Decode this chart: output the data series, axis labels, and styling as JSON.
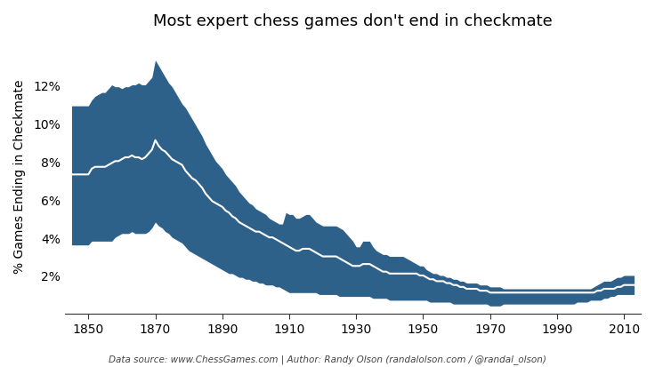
{
  "title": "Most expert chess games don't end in checkmate",
  "ylabel": "% Games Ending in Checkmate",
  "footnote": "Data source: www.ChessGames.com | Author: Randy Olson (randalolson.com / @randal_olson)",
  "fill_color": "#2e618a",
  "line_color": "#ffffff",
  "background_color": "#ffffff",
  "xlim": [
    1843,
    2015
  ],
  "ylim": [
    0,
    0.145
  ],
  "yticks": [
    0.02,
    0.04,
    0.06,
    0.08,
    0.1,
    0.12
  ],
  "ytick_labels": [
    "2%",
    "4%",
    "6%",
    "8%",
    "10%",
    "12%"
  ],
  "xticks": [
    1850,
    1870,
    1890,
    1910,
    1930,
    1950,
    1970,
    1990,
    2010
  ],
  "years": [
    1845,
    1848,
    1850,
    1851,
    1852,
    1853,
    1854,
    1855,
    1856,
    1857,
    1858,
    1859,
    1860,
    1861,
    1862,
    1863,
    1864,
    1865,
    1866,
    1867,
    1868,
    1869,
    1870,
    1871,
    1872,
    1873,
    1874,
    1875,
    1876,
    1877,
    1878,
    1879,
    1880,
    1881,
    1882,
    1883,
    1884,
    1885,
    1886,
    1887,
    1888,
    1889,
    1890,
    1891,
    1892,
    1893,
    1894,
    1895,
    1896,
    1897,
    1898,
    1899,
    1900,
    1901,
    1902,
    1903,
    1904,
    1905,
    1906,
    1907,
    1908,
    1909,
    1910,
    1911,
    1912,
    1913,
    1914,
    1915,
    1916,
    1917,
    1918,
    1919,
    1920,
    1921,
    1922,
    1923,
    1924,
    1925,
    1926,
    1927,
    1928,
    1929,
    1930,
    1931,
    1932,
    1933,
    1934,
    1935,
    1936,
    1937,
    1938,
    1939,
    1940,
    1941,
    1942,
    1943,
    1944,
    1945,
    1946,
    1947,
    1948,
    1949,
    1950,
    1951,
    1952,
    1953,
    1954,
    1955,
    1956,
    1957,
    1958,
    1959,
    1960,
    1961,
    1962,
    1963,
    1964,
    1965,
    1966,
    1967,
    1968,
    1969,
    1970,
    1971,
    1972,
    1973,
    1974,
    1975,
    1976,
    1977,
    1978,
    1979,
    1980,
    1981,
    1982,
    1983,
    1984,
    1985,
    1986,
    1987,
    1988,
    1989,
    1990,
    1991,
    1992,
    1993,
    1994,
    1995,
    1996,
    1997,
    1998,
    1999,
    2000,
    2001,
    2002,
    2003,
    2004,
    2005,
    2006,
    2007,
    2008,
    2009,
    2010,
    2011,
    2012,
    2013
  ],
  "mean_line": [
    0.073,
    0.073,
    0.073,
    0.076,
    0.077,
    0.077,
    0.077,
    0.077,
    0.078,
    0.079,
    0.08,
    0.08,
    0.081,
    0.082,
    0.082,
    0.083,
    0.082,
    0.082,
    0.081,
    0.082,
    0.084,
    0.086,
    0.091,
    0.088,
    0.086,
    0.085,
    0.083,
    0.081,
    0.08,
    0.079,
    0.078,
    0.075,
    0.073,
    0.071,
    0.07,
    0.068,
    0.066,
    0.063,
    0.061,
    0.059,
    0.058,
    0.057,
    0.056,
    0.054,
    0.053,
    0.051,
    0.05,
    0.048,
    0.047,
    0.046,
    0.045,
    0.044,
    0.043,
    0.043,
    0.042,
    0.041,
    0.04,
    0.04,
    0.039,
    0.038,
    0.037,
    0.036,
    0.035,
    0.034,
    0.033,
    0.033,
    0.034,
    0.034,
    0.034,
    0.033,
    0.032,
    0.031,
    0.03,
    0.03,
    0.03,
    0.03,
    0.03,
    0.029,
    0.028,
    0.027,
    0.026,
    0.025,
    0.025,
    0.025,
    0.026,
    0.026,
    0.026,
    0.025,
    0.024,
    0.023,
    0.022,
    0.022,
    0.021,
    0.021,
    0.021,
    0.021,
    0.021,
    0.021,
    0.021,
    0.021,
    0.021,
    0.02,
    0.02,
    0.019,
    0.018,
    0.018,
    0.017,
    0.017,
    0.017,
    0.016,
    0.016,
    0.015,
    0.015,
    0.014,
    0.014,
    0.013,
    0.013,
    0.013,
    0.013,
    0.012,
    0.012,
    0.012,
    0.011,
    0.011,
    0.011,
    0.011,
    0.011,
    0.011,
    0.011,
    0.011,
    0.011,
    0.011,
    0.011,
    0.011,
    0.011,
    0.011,
    0.011,
    0.011,
    0.011,
    0.011,
    0.011,
    0.011,
    0.011,
    0.011,
    0.011,
    0.011,
    0.011,
    0.011,
    0.011,
    0.011,
    0.011,
    0.011,
    0.011,
    0.011,
    0.012,
    0.012,
    0.013,
    0.013,
    0.013,
    0.013,
    0.014,
    0.014,
    0.015,
    0.015,
    0.015,
    0.015
  ],
  "upper_band": [
    0.109,
    0.109,
    0.109,
    0.112,
    0.114,
    0.115,
    0.116,
    0.116,
    0.118,
    0.12,
    0.119,
    0.119,
    0.118,
    0.119,
    0.119,
    0.12,
    0.12,
    0.121,
    0.12,
    0.12,
    0.122,
    0.124,
    0.133,
    0.13,
    0.127,
    0.124,
    0.121,
    0.119,
    0.116,
    0.113,
    0.11,
    0.108,
    0.105,
    0.102,
    0.099,
    0.096,
    0.093,
    0.089,
    0.086,
    0.083,
    0.08,
    0.078,
    0.076,
    0.073,
    0.071,
    0.069,
    0.067,
    0.064,
    0.062,
    0.06,
    0.058,
    0.057,
    0.055,
    0.054,
    0.053,
    0.052,
    0.05,
    0.049,
    0.048,
    0.047,
    0.047,
    0.053,
    0.052,
    0.052,
    0.05,
    0.05,
    0.051,
    0.052,
    0.052,
    0.05,
    0.048,
    0.047,
    0.046,
    0.046,
    0.046,
    0.046,
    0.046,
    0.045,
    0.044,
    0.042,
    0.04,
    0.038,
    0.035,
    0.035,
    0.038,
    0.038,
    0.038,
    0.035,
    0.033,
    0.032,
    0.031,
    0.031,
    0.03,
    0.03,
    0.03,
    0.03,
    0.03,
    0.029,
    0.028,
    0.027,
    0.026,
    0.025,
    0.025,
    0.023,
    0.022,
    0.021,
    0.021,
    0.02,
    0.02,
    0.019,
    0.019,
    0.018,
    0.018,
    0.017,
    0.017,
    0.016,
    0.016,
    0.016,
    0.016,
    0.015,
    0.015,
    0.015,
    0.014,
    0.014,
    0.014,
    0.014,
    0.013,
    0.013,
    0.013,
    0.013,
    0.013,
    0.013,
    0.013,
    0.013,
    0.013,
    0.013,
    0.013,
    0.013,
    0.013,
    0.013,
    0.013,
    0.013,
    0.013,
    0.013,
    0.013,
    0.013,
    0.013,
    0.013,
    0.013,
    0.013,
    0.013,
    0.013,
    0.013,
    0.014,
    0.015,
    0.016,
    0.017,
    0.017,
    0.017,
    0.018,
    0.019,
    0.019,
    0.02,
    0.02,
    0.02,
    0.02
  ],
  "lower_band": [
    0.036,
    0.036,
    0.036,
    0.038,
    0.038,
    0.038,
    0.038,
    0.038,
    0.038,
    0.038,
    0.04,
    0.041,
    0.042,
    0.042,
    0.042,
    0.043,
    0.042,
    0.042,
    0.042,
    0.042,
    0.043,
    0.045,
    0.048,
    0.046,
    0.045,
    0.043,
    0.042,
    0.04,
    0.039,
    0.038,
    0.037,
    0.035,
    0.033,
    0.032,
    0.031,
    0.03,
    0.029,
    0.028,
    0.027,
    0.026,
    0.025,
    0.024,
    0.023,
    0.022,
    0.021,
    0.021,
    0.02,
    0.019,
    0.019,
    0.018,
    0.018,
    0.017,
    0.017,
    0.016,
    0.016,
    0.015,
    0.015,
    0.015,
    0.014,
    0.014,
    0.013,
    0.012,
    0.011,
    0.011,
    0.011,
    0.011,
    0.011,
    0.011,
    0.011,
    0.011,
    0.011,
    0.01,
    0.01,
    0.01,
    0.01,
    0.01,
    0.01,
    0.009,
    0.009,
    0.009,
    0.009,
    0.009,
    0.009,
    0.009,
    0.009,
    0.009,
    0.009,
    0.008,
    0.008,
    0.008,
    0.008,
    0.008,
    0.007,
    0.007,
    0.007,
    0.007,
    0.007,
    0.007,
    0.007,
    0.007,
    0.007,
    0.007,
    0.007,
    0.007,
    0.006,
    0.006,
    0.006,
    0.006,
    0.006,
    0.006,
    0.006,
    0.005,
    0.005,
    0.005,
    0.005,
    0.005,
    0.005,
    0.005,
    0.005,
    0.005,
    0.005,
    0.005,
    0.004,
    0.004,
    0.004,
    0.004,
    0.005,
    0.005,
    0.005,
    0.005,
    0.005,
    0.005,
    0.005,
    0.005,
    0.005,
    0.005,
    0.005,
    0.005,
    0.005,
    0.005,
    0.005,
    0.005,
    0.005,
    0.005,
    0.005,
    0.005,
    0.005,
    0.005,
    0.006,
    0.006,
    0.006,
    0.006,
    0.007,
    0.007,
    0.007,
    0.007,
    0.008,
    0.008,
    0.009,
    0.009,
    0.01,
    0.01,
    0.01,
    0.01,
    0.01,
    0.01
  ]
}
